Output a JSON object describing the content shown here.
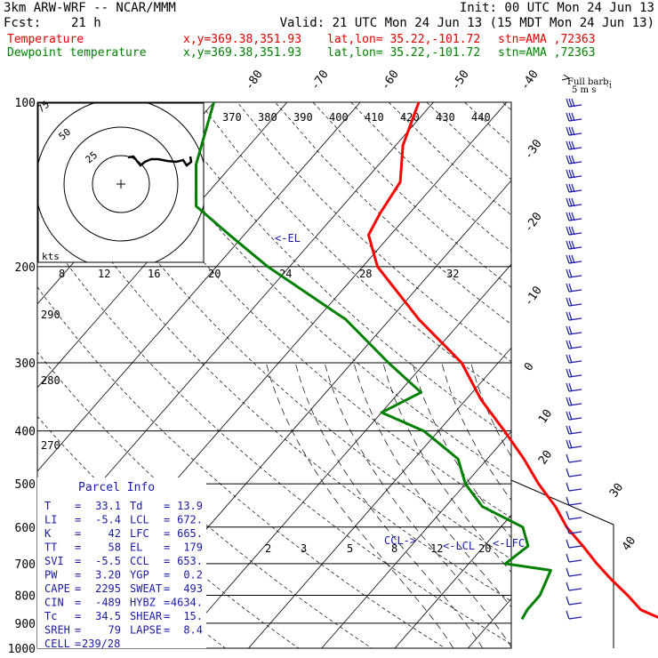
{
  "header": {
    "model": "3km ARW-WRF -- NCAR/MMM",
    "init": "Init: 00 UTC Mon 24 Jun 13",
    "fcst_label": "Fcst:",
    "fcst_value": "21 h",
    "valid": "Valid: 21 UTC Mon 24 Jun 13 (15 MDT Mon 24 Jun 13)",
    "temp_label": "Temperature",
    "dew_label": "Dewpoint temperature",
    "xy": "x,y=369.38,351.93",
    "latlon": "lat,lon= 35.22,-101.72",
    "stn": "stn=AMA ,72363"
  },
  "wind_key": {
    "title": "Full barb:",
    "value": "5 m s",
    "exp": "-1"
  },
  "colors": {
    "temperature": "#ff0000",
    "dewpoint": "#008000",
    "navy": "#1a1aa8",
    "grid": "#000000"
  },
  "chart_data": {
    "type": "line",
    "title": "",
    "y_axis": {
      "label": "",
      "scale": "log",
      "ticks": [
        100,
        200,
        300,
        400,
        500,
        600,
        700,
        800,
        900,
        1000
      ]
    },
    "isotherm_labels": [
      "-80",
      "-70",
      "-60",
      "-50",
      "-40",
      "-30",
      "-20",
      "-10",
      "0",
      "10",
      "20",
      "30",
      "40"
    ],
    "theta_e_labels": [
      "370",
      "380",
      "390",
      "400",
      "410",
      "420",
      "430",
      "440"
    ],
    "mixing_ratio_labels": [
      "8",
      "12",
      "16",
      "20",
      "24",
      "28",
      "32"
    ],
    "mixing_ratio_labels_low": [
      "2",
      "3",
      "5",
      "8",
      "12",
      "20"
    ],
    "dry_adiabat_labels": [
      "290",
      "280",
      "270"
    ],
    "hodograph": {
      "ring_labels": [
        "25",
        "50",
        "75"
      ],
      "unit": "kts"
    },
    "levels": {
      "el": "<-EL",
      "ccl": "CCL->",
      "lcl": "<-LCL",
      "lfc": "<-LFC"
    },
    "series": [
      {
        "name": "Temperature",
        "points": [
          [
            885,
            33.1
          ],
          [
            850,
            29
          ],
          [
            800,
            25.5
          ],
          [
            750,
            21.5
          ],
          [
            700,
            17.5
          ],
          [
            650,
            13.5
          ],
          [
            600,
            9
          ],
          [
            550,
            5
          ],
          [
            500,
            0
          ],
          [
            450,
            -5
          ],
          [
            400,
            -11
          ],
          [
            350,
            -18
          ],
          [
            300,
            -25
          ],
          [
            250,
            -36
          ],
          [
            200,
            -48
          ],
          [
            175,
            -53
          ],
          [
            160,
            -54
          ],
          [
            140,
            -55
          ],
          [
            120,
            -59
          ],
          [
            100,
            -62
          ]
        ]
      },
      {
        "name": "Dewpoint temperature",
        "points": [
          [
            885,
            13.9
          ],
          [
            850,
            13.5
          ],
          [
            800,
            13.5
          ],
          [
            720,
            12
          ],
          [
            700,
            5
          ],
          [
            650,
            6
          ],
          [
            600,
            3
          ],
          [
            550,
            -5
          ],
          [
            500,
            -10
          ],
          [
            450,
            -14
          ],
          [
            400,
            -22
          ],
          [
            370,
            -30
          ],
          [
            340,
            -27
          ],
          [
            300,
            -35
          ],
          [
            250,
            -46
          ],
          [
            200,
            -63
          ],
          [
            175,
            -72
          ],
          [
            155,
            -80
          ],
          [
            130,
            -85
          ],
          [
            100,
            -90
          ]
        ]
      }
    ]
  },
  "parcel_info": {
    "title": "Parcel Info",
    "rows": [
      {
        "k1": "T",
        "v1": "33.1",
        "k2": "Td",
        "v2": "13.9"
      },
      {
        "k1": "LI",
        "v1": "-5.4",
        "k2": "LCL",
        "v2": "672."
      },
      {
        "k1": "K",
        "v1": "42",
        "k2": "LFC",
        "v2": "665."
      },
      {
        "k1": "TT",
        "v1": "58",
        "k2": "EL",
        "v2": "179"
      },
      {
        "k1": "SVI",
        "v1": "-5.5",
        "k2": "CCL",
        "v2": "653."
      },
      {
        "k1": "PW",
        "v1": "3.20",
        "k2": "YGP",
        "v2": "0.2"
      },
      {
        "k1": "CAPE",
        "v1": "2295",
        "k2": "SWEAT",
        "v2": "493"
      },
      {
        "k1": "CIN",
        "v1": "-489",
        "k2": "HYBZ",
        "v2": "4634."
      },
      {
        "k1": "Tc",
        "v1": "34.5",
        "k2": "SHEAR",
        "v2": "15."
      },
      {
        "k1": "SREH",
        "v1": "79",
        "k2": "LAPSE",
        "v2": "8.4"
      }
    ],
    "cell_label": "CELL",
    "cell_value": "239/28"
  }
}
